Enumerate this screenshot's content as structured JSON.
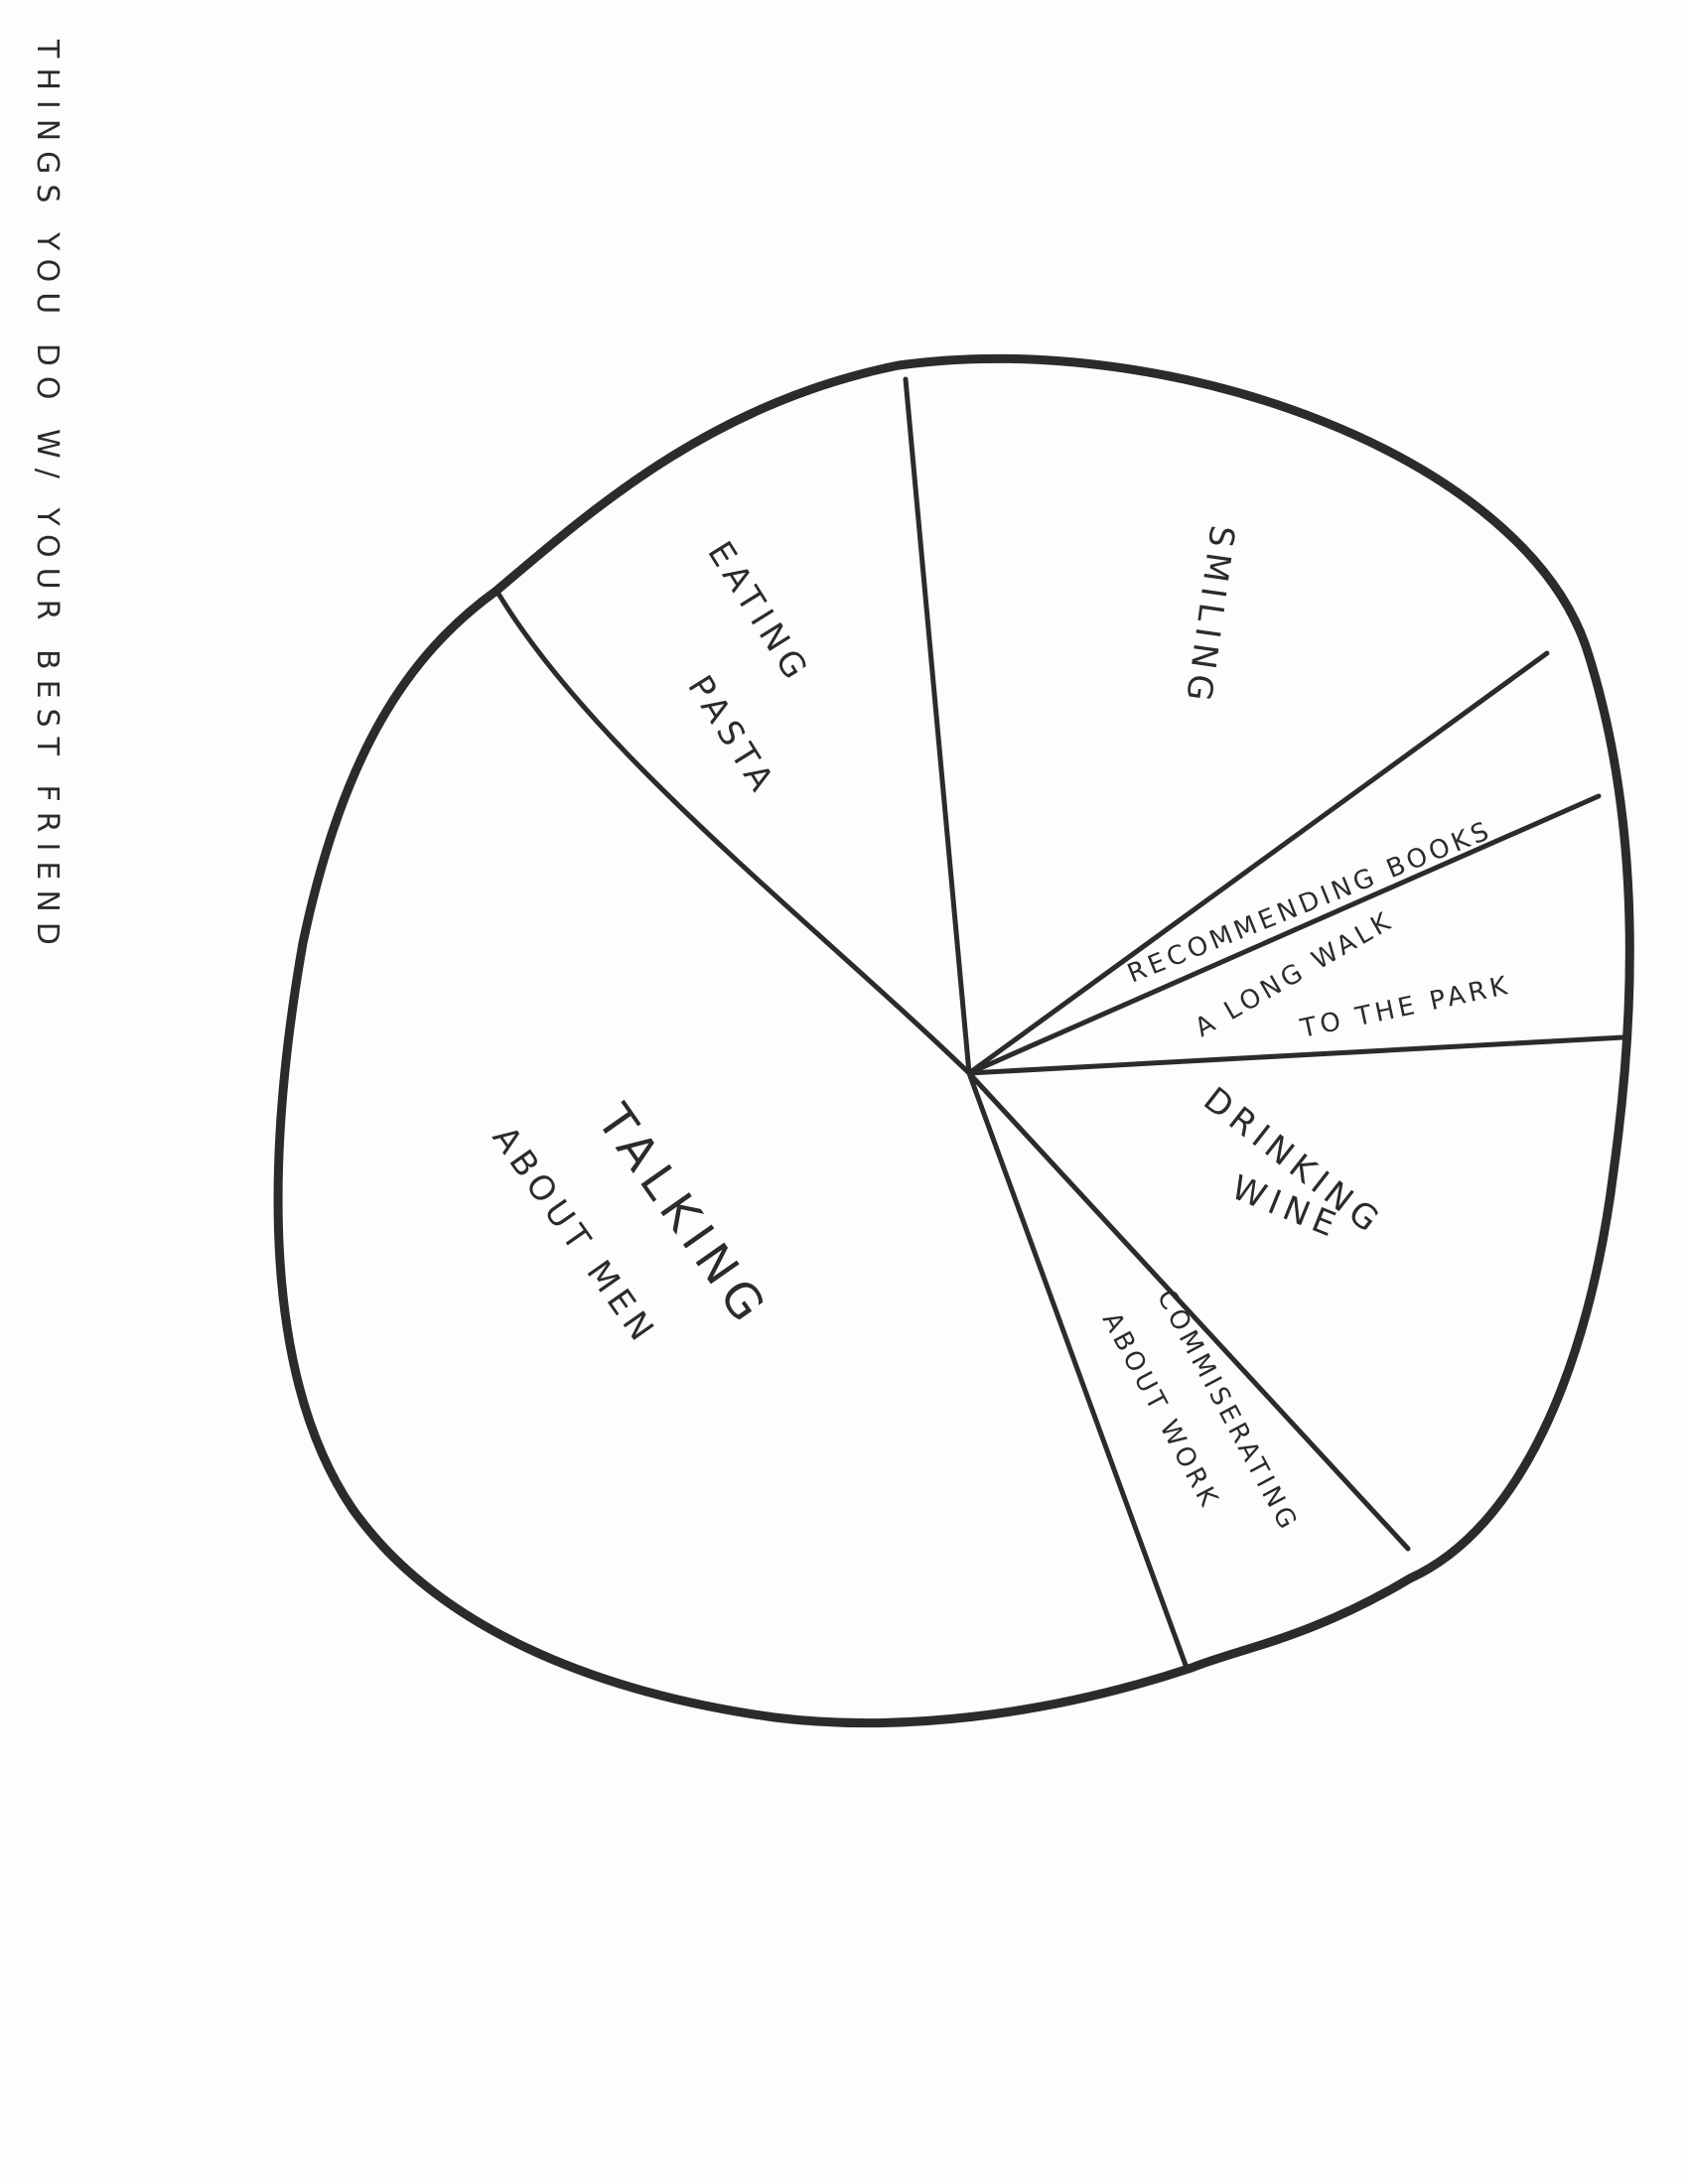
{
  "chart_data": {
    "type": "pie",
    "title": "THINGS YOU DO W/ YOUR BEST FRIEND",
    "categories": [
      "SMILING",
      "RECOMMENDING BOOKS",
      "A LONG WALK TO THE PARK",
      "DRINKING WINE",
      "COMMISERATING ABOUT WORK",
      "TALKING ABOUT MEN",
      "EATING PASTA"
    ],
    "values": [
      19,
      3,
      4,
      10,
      5,
      45,
      14
    ],
    "labels": {
      "smiling": [
        "SMILING"
      ],
      "recommending_books": [
        "RECOMMENDING BOOKS"
      ],
      "long_walk": [
        "A LONG WALK",
        "TO THE PARK"
      ],
      "drinking_wine": [
        "DRINKING",
        "WINE"
      ],
      "commiserating": [
        "COMMISERATING",
        "ABOUT WORK"
      ],
      "talking": [
        "TALKING",
        "ABOUT MEN"
      ],
      "eating_pasta": [
        "EATING",
        "PASTA"
      ]
    },
    "legend": "none",
    "colors": {
      "ink": "#2b2b2b",
      "fill": "#ffffff"
    }
  }
}
